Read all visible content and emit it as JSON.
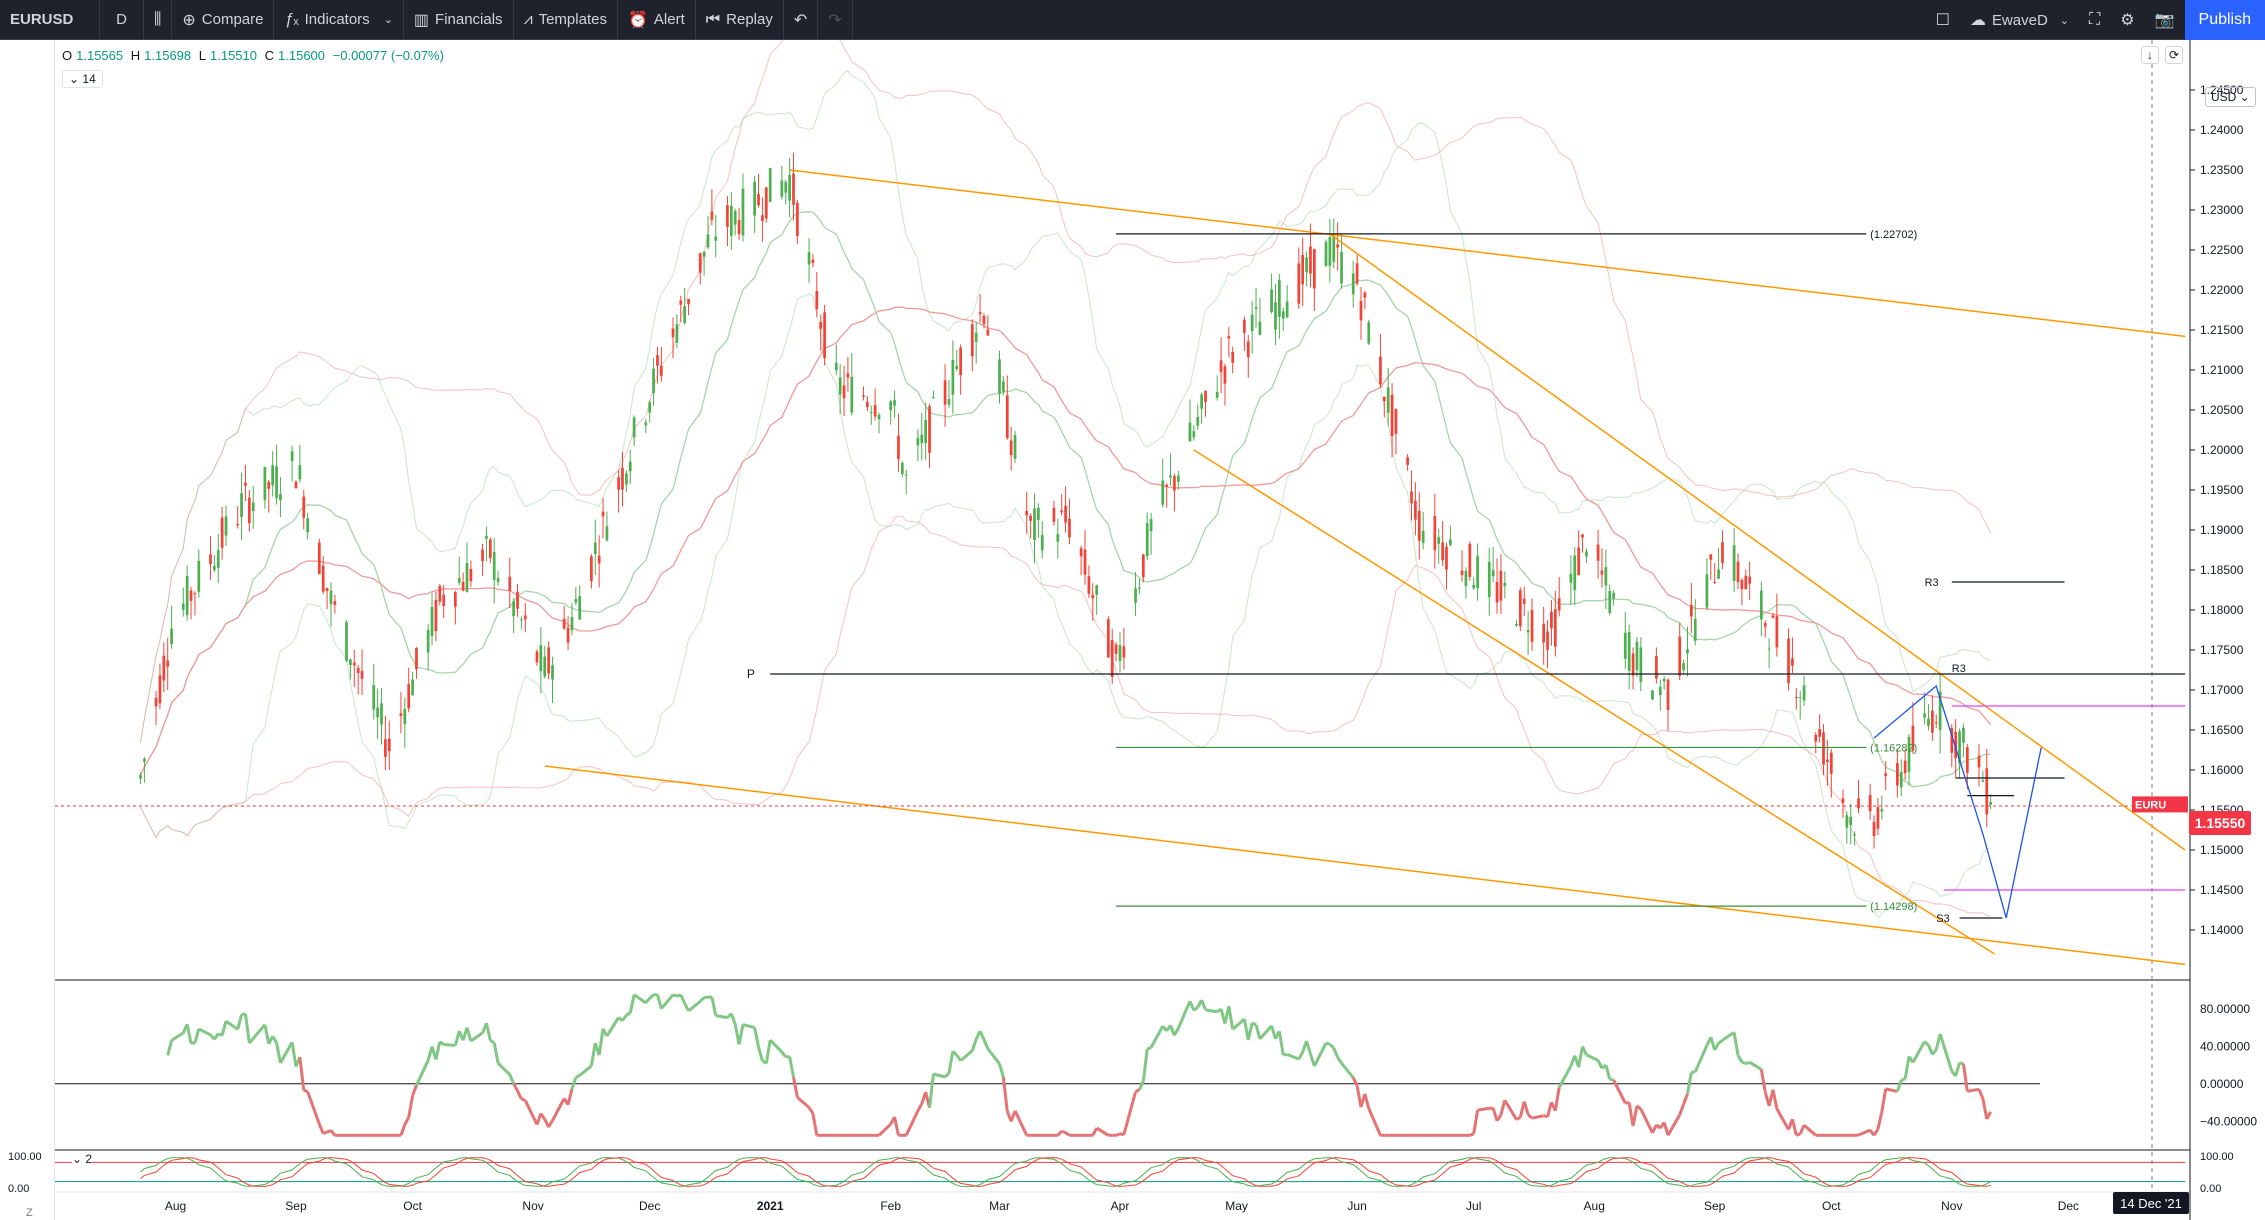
{
  "toolbar": {
    "symbol": "EURUSD",
    "interval": "D",
    "compare_label": "Compare",
    "indicators_label": "Indicators",
    "financials_label": "Financials",
    "templates_label": "Templates",
    "alert_label": "Alert",
    "replay_label": "Replay",
    "layout_name": "EwaveD",
    "publish_label": "Publish"
  },
  "legend": {
    "open_label": "O",
    "open": "1.15565",
    "high_label": "H",
    "high": "1.15698",
    "low_label": "L",
    "low": "1.15510",
    "close_label": "C",
    "close": "1.15600",
    "change": "−0.00077 (−0.07%)",
    "collapsed_count": "14",
    "sub_pane_count": "2"
  },
  "colors": {
    "up": "#089981",
    "down": "#f23645",
    "candle_up": "#4caf50",
    "candle_down": "#f44336",
    "trend_orange": "#ff9800",
    "fib_green": "#388e3c",
    "wave_blue": "#2962ff",
    "magenta": "#e040fb"
  },
  "scale": {
    "currency": "USD",
    "price_current": "1.15550",
    "crosshair_date": "14 Dec '21",
    "symbol_tag": "EURU"
  },
  "icons": [
    "plus-circle-icon",
    "fx-icon",
    "bars-icon",
    "templates-icon",
    "alert-clock-icon",
    "replay-icon",
    "undo-icon",
    "redo-icon",
    "fullscreen-icon",
    "settings-icon",
    "camera-icon",
    "cloud-icon"
  ],
  "chart_data": [
    {
      "type": "candlestick",
      "title": "EURUSD",
      "interval": "D",
      "ylim": [
        1.135,
        1.25
      ],
      "y_ticks": [
        "1.24500",
        "1.24000",
        "1.23500",
        "1.23000",
        "1.22500",
        "1.22000",
        "1.21500",
        "1.21000",
        "1.20500",
        "1.20000",
        "1.19500",
        "1.19000",
        "1.18500",
        "1.18000",
        "1.17500",
        "1.17000",
        "1.16500",
        "1.16000",
        "1.15500",
        "1.15000",
        "1.14500",
        "1.14000"
      ],
      "x_ticks": [
        "Aug",
        "Sep",
        "Oct",
        "Nov",
        "Dec",
        "2021",
        "Feb",
        "Mar",
        "Apr",
        "May",
        "Jun",
        "Jul",
        "Aug",
        "Sep",
        "Oct",
        "Nov",
        "Dec"
      ],
      "close_path": [
        {
          "date": "2020-07-23",
          "close": 1.159
        },
        {
          "date": "2020-07-31",
          "close": 1.178
        },
        {
          "date": "2020-08-18",
          "close": 1.193
        },
        {
          "date": "2020-09-01",
          "close": 1.198
        },
        {
          "date": "2020-09-10",
          "close": 1.181
        },
        {
          "date": "2020-09-25",
          "close": 1.163
        },
        {
          "date": "2020-10-09",
          "close": 1.182
        },
        {
          "date": "2020-10-21",
          "close": 1.187
        },
        {
          "date": "2020-11-04",
          "close": 1.172
        },
        {
          "date": "2020-11-11",
          "close": 1.179
        },
        {
          "date": "2020-12-01",
          "close": 1.207
        },
        {
          "date": "2020-12-17",
          "close": 1.227
        },
        {
          "date": "2021-01-06",
          "close": 1.234
        },
        {
          "date": "2021-01-18",
          "close": 1.208
        },
        {
          "date": "2021-02-01",
          "close": 1.206
        },
        {
          "date": "2021-02-05",
          "close": 1.196
        },
        {
          "date": "2021-02-25",
          "close": 1.218
        },
        {
          "date": "2021-03-09",
          "close": 1.19
        },
        {
          "date": "2021-03-19",
          "close": 1.191
        },
        {
          "date": "2021-03-31",
          "close": 1.173
        },
        {
          "date": "2021-04-09",
          "close": 1.19
        },
        {
          "date": "2021-04-29",
          "close": 1.212
        },
        {
          "date": "2021-05-07",
          "close": 1.216
        },
        {
          "date": "2021-05-25",
          "close": 1.225
        },
        {
          "date": "2021-06-01",
          "close": 1.221
        },
        {
          "date": "2021-06-17",
          "close": 1.191
        },
        {
          "date": "2021-07-01",
          "close": 1.185
        },
        {
          "date": "2021-07-21",
          "close": 1.177
        },
        {
          "date": "2021-07-30",
          "close": 1.189
        },
        {
          "date": "2021-08-11",
          "close": 1.174
        },
        {
          "date": "2021-08-20",
          "close": 1.17
        },
        {
          "date": "2021-09-03",
          "close": 1.188
        },
        {
          "date": "2021-09-21",
          "close": 1.173
        },
        {
          "date": "2021-10-06",
          "close": 1.154
        },
        {
          "date": "2021-10-12",
          "close": 1.154
        },
        {
          "date": "2021-10-28",
          "close": 1.168
        },
        {
          "date": "2021-11-09",
          "close": 1.159
        },
        {
          "date": "2021-11-11",
          "close": 1.1555
        }
      ],
      "levels": [
        {
          "label": "(1.22702)",
          "price": 1.22702
        },
        {
          "label": "(1.16282)",
          "price": 1.16282
        },
        {
          "label": "(1.14298)",
          "price": 1.14298
        },
        {
          "label": "P",
          "price": 1.172
        },
        {
          "label": "R3",
          "price": 1.172
        },
        {
          "label": "R3",
          "price": 1.1835
        },
        {
          "label": "S3",
          "price": 1.1415
        }
      ],
      "current_price": 1.1555
    },
    {
      "type": "line",
      "ylim": [
        -60,
        100
      ],
      "y_ticks": [
        "80.00000",
        "40.00000",
        "0.00000",
        "−40.00000"
      ],
      "zero_line": 0
    },
    {
      "type": "line",
      "ylim": [
        0,
        100
      ],
      "y_ticks": [
        "100.00",
        "0.00"
      ]
    }
  ]
}
